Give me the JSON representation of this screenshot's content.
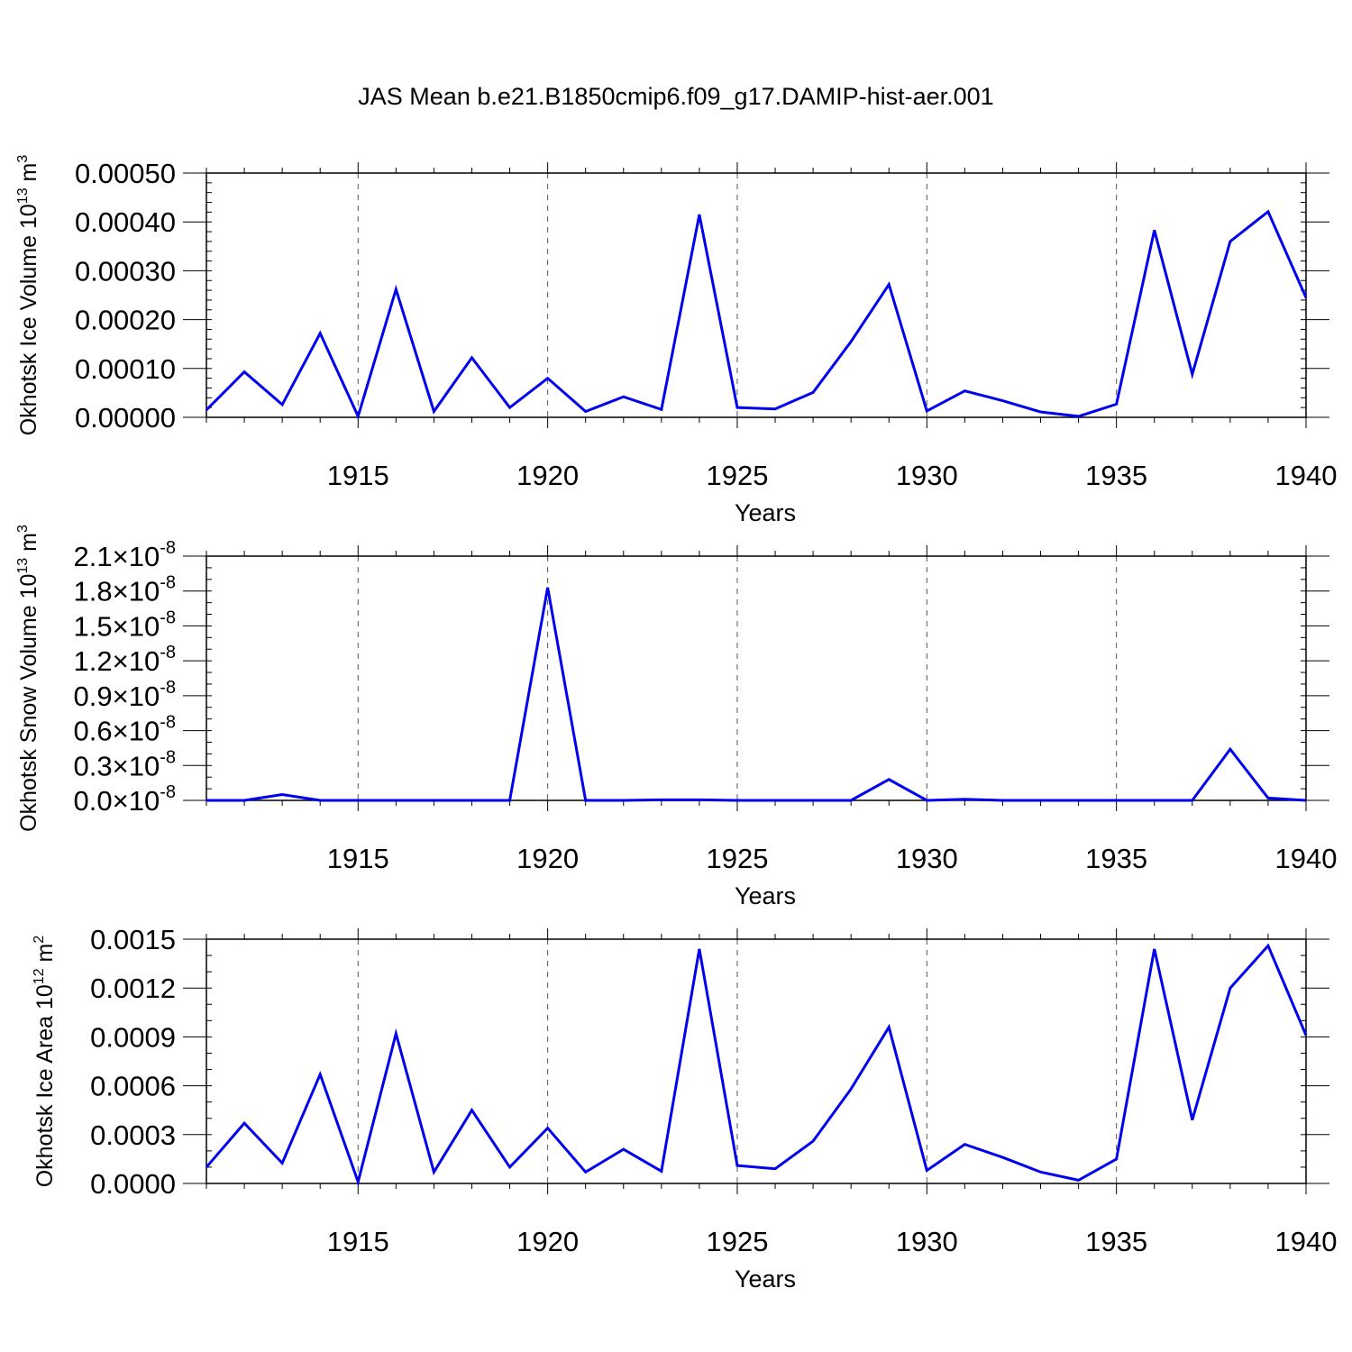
{
  "figure_title": "JAS Mean b.e21.B1850cmip6.f09_g17.DAMIP-hist-aer.001",
  "line_color": "#0000ee",
  "chart_data": [
    {
      "type": "line",
      "ylabel": "Okhotsk Ice Volume 10",
      "ylabel_exp": "13",
      "ylabel_unit": " m",
      "ylabel_unit_exp": "3",
      "xlabel": "Years",
      "xlim": [
        1911,
        1940
      ],
      "ylim": [
        0,
        0.0005
      ],
      "x_ticks": [
        "1915",
        "1920",
        "1925",
        "1930",
        "1935",
        "1940"
      ],
      "y_tick_values": [
        0,
        0.0001,
        0.0002,
        0.0003,
        0.0004,
        0.0005
      ],
      "y_tick_labels": [
        "0.00000",
        "0.00010",
        "0.00020",
        "0.00030",
        "0.00040",
        "0.00050"
      ],
      "y_minor_step": 2e-05,
      "x": [
        1911,
        1912,
        1913,
        1914,
        1915,
        1916,
        1917,
        1918,
        1919,
        1920,
        1921,
        1922,
        1923,
        1924,
        1925,
        1926,
        1927,
        1928,
        1929,
        1930,
        1931,
        1932,
        1933,
        1934,
        1935,
        1936,
        1937,
        1938,
        1939,
        1940
      ],
      "values": [
        1.5e-05,
        9.3e-05,
        2.6e-05,
        0.000172,
        2e-06,
        0.000262,
        1.2e-05,
        0.000122,
        2e-05,
        8e-05,
        1.2e-05,
        4.2e-05,
        1.6e-05,
        0.000415,
        2e-05,
        1.7e-05,
        5.1e-05,
        0.000155,
        0.000272,
        1.3e-05,
        5.4e-05,
        3.4e-05,
        1.1e-05,
        2e-06,
        2.7e-05,
        0.000383,
        8.8e-05,
        0.00036,
        0.000421,
        0.000245
      ]
    },
    {
      "type": "line",
      "ylabel": "Okhotsk Snow Volume 10",
      "ylabel_exp": "13",
      "ylabel_unit": " m",
      "ylabel_unit_exp": "3",
      "xlabel": "Years",
      "xlim": [
        1911,
        1940
      ],
      "ylim": [
        0,
        2.1e-08
      ],
      "x_ticks": [
        "1915",
        "1920",
        "1925",
        "1930",
        "1935",
        "1940"
      ],
      "y_tick_values": [
        0,
        3e-09,
        6e-09,
        9e-09,
        1.2e-08,
        1.5e-08,
        1.8e-08,
        2.1e-08
      ],
      "y_tick_labels": [
        "0.0",
        "0.3",
        "0.6",
        "0.9",
        "1.2",
        "1.5",
        "1.8",
        "2.1"
      ],
      "y_tick_suffix": "×10",
      "y_tick_suffix_exp": "-8",
      "y_minor_step": 1e-09,
      "x": [
        1911,
        1912,
        1913,
        1914,
        1915,
        1916,
        1917,
        1918,
        1919,
        1920,
        1921,
        1922,
        1923,
        1924,
        1925,
        1926,
        1927,
        1928,
        1929,
        1930,
        1931,
        1932,
        1933,
        1934,
        1935,
        1936,
        1937,
        1938,
        1939,
        1940
      ],
      "values": [
        0,
        0,
        5e-10,
        0,
        0,
        0,
        0,
        0,
        0,
        1.83e-08,
        0,
        0,
        5e-11,
        5e-11,
        0,
        0,
        0,
        0,
        1.8e-09,
        0,
        1e-10,
        0,
        0,
        0,
        0,
        0,
        0,
        4.4e-09,
        2e-10,
        0
      ]
    },
    {
      "type": "line",
      "ylabel": "Okhotsk Ice Area 10",
      "ylabel_exp": "12",
      "ylabel_unit": " m",
      "ylabel_unit_exp": "2",
      "xlabel": "Years",
      "xlim": [
        1911,
        1940
      ],
      "ylim": [
        0,
        0.0015
      ],
      "x_ticks": [
        "1915",
        "1920",
        "1925",
        "1930",
        "1935",
        "1940"
      ],
      "y_tick_values": [
        0,
        0.0003,
        0.0006,
        0.0009,
        0.0012,
        0.0015
      ],
      "y_tick_labels": [
        "0.0000",
        "0.0003",
        "0.0006",
        "0.0009",
        "0.0012",
        "0.0015"
      ],
      "y_minor_step": 0.0001,
      "x": [
        1911,
        1912,
        1913,
        1914,
        1915,
        1916,
        1917,
        1918,
        1919,
        1920,
        1921,
        1922,
        1923,
        1924,
        1925,
        1926,
        1927,
        1928,
        1929,
        1930,
        1931,
        1932,
        1933,
        1934,
        1935,
        1936,
        1937,
        1938,
        1939,
        1940
      ],
      "values": [
        0.0001,
        0.00037,
        0.000125,
        0.00067,
        1e-05,
        0.00092,
        7e-05,
        0.00045,
        0.0001,
        0.00034,
        7e-05,
        0.00021,
        7.5e-05,
        0.00144,
        0.00011,
        9e-05,
        0.00026,
        0.00058,
        0.00096,
        8e-05,
        0.00024,
        0.00016,
        7e-05,
        2e-05,
        0.00015,
        0.00144,
        0.00039,
        0.0012,
        0.00146,
        0.00091
      ]
    }
  ]
}
